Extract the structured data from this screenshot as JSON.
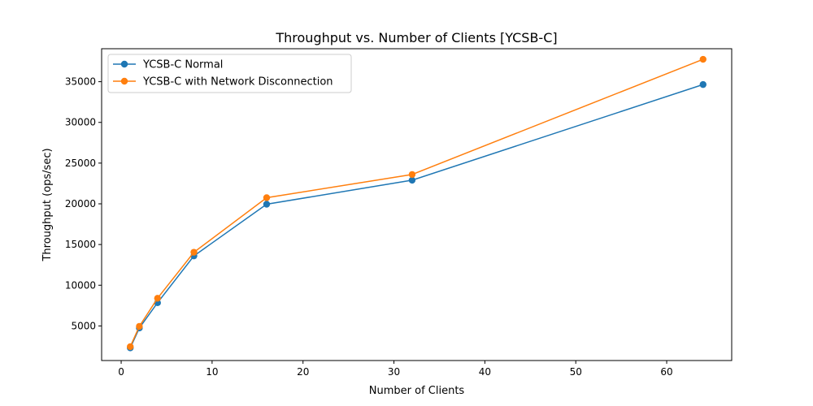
{
  "chart_data": {
    "type": "line",
    "title": "Throughput vs. Number of Clients [YCSB-C]",
    "xlabel": "Number of Clients",
    "ylabel": "Throughput (ops/sec)",
    "xlim": [
      -2.15,
      67.15
    ],
    "ylim": [
      750,
      39050
    ],
    "xticks": [
      0,
      10,
      20,
      30,
      40,
      50,
      60
    ],
    "xtick_labels": [
      "0",
      "10",
      "20",
      "30",
      "40",
      "50",
      "60"
    ],
    "yticks": [
      5000,
      10000,
      15000,
      20000,
      25000,
      30000,
      35000
    ],
    "ytick_labels": [
      "5000",
      "10000",
      "15000",
      "20000",
      "25000",
      "30000",
      "35000"
    ],
    "grid": false,
    "legend": "upper-left",
    "x": [
      1,
      2,
      4,
      8,
      16,
      32,
      64
    ],
    "series": [
      {
        "name": "YCSB-C Normal",
        "color": "#1f77b4",
        "marker": "circle",
        "values": [
          2300,
          4750,
          7850,
          13600,
          19950,
          22900,
          34650
        ]
      },
      {
        "name": "YCSB-C with Network Disconnection",
        "color": "#ff7f0e",
        "marker": "circle",
        "values": [
          2450,
          4950,
          8400,
          14050,
          20750,
          23600,
          37750
        ]
      }
    ]
  }
}
